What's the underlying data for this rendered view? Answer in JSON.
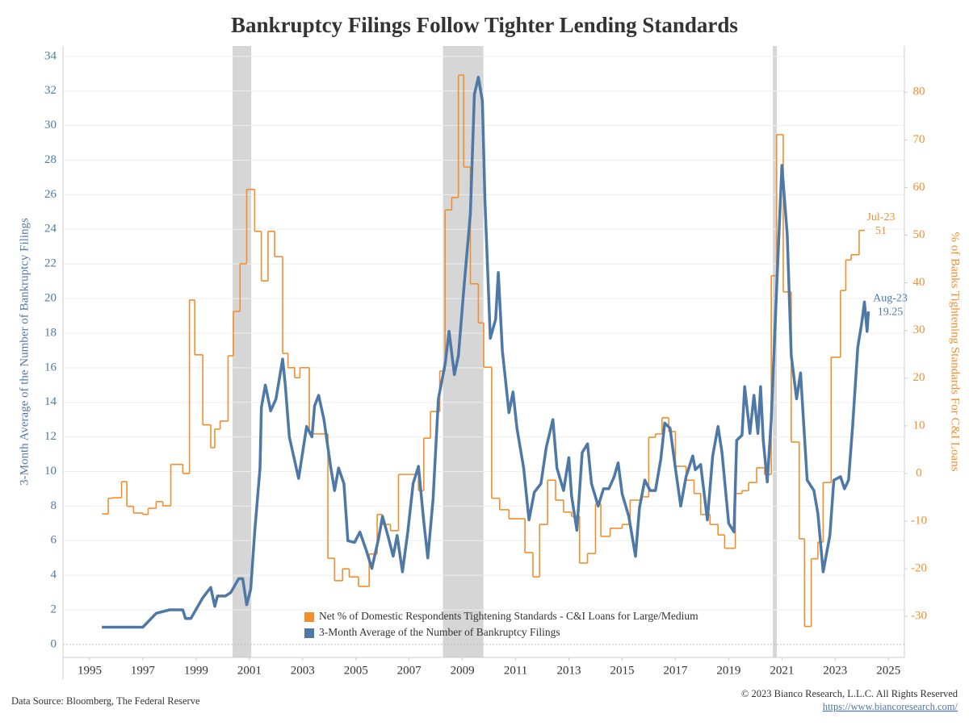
{
  "chart_data": {
    "type": "dual-axis-line",
    "title": "Bankruptcy Filings Follow Tighter Lending Standards",
    "y_label": "3-Month Average of the Number of Bankruptcy Filings",
    "y2_label": "% of Banks Tightening Standards For C&I Loans",
    "xlim": [
      1994,
      2025.6
    ],
    "xticks": [
      1995,
      1997,
      1999,
      2001,
      2003,
      2005,
      2007,
      2009,
      2011,
      2013,
      2015,
      2017,
      2019,
      2021,
      2023,
      2025
    ],
    "ylim": [
      -0.75,
      34.6
    ],
    "yticks": [
      0,
      2,
      4,
      6,
      8,
      10,
      12,
      14,
      16,
      18,
      20,
      22,
      24,
      26,
      28,
      30,
      32,
      34
    ],
    "y2lim": [
      -38.6,
      89.7
    ],
    "y2ticks": [
      -30,
      -20,
      -10,
      0,
      10,
      20,
      30,
      40,
      50,
      60,
      70,
      80
    ],
    "grid": true,
    "recessions": [
      [
        2000.37,
        2001.07
      ],
      [
        2008.27,
        2009.79
      ],
      [
        2020.66,
        2020.81
      ]
    ],
    "series": [
      {
        "name": "Net % of Domestic Respondents Tightening Standards - C&I Loans for Large/Medium",
        "color": "#f28e2b",
        "axis": "y2",
        "step": true,
        "x": [
          1995.46,
          1995.7,
          1995.85,
          1996.2,
          1996.4,
          1996.65,
          1997.0,
          1997.2,
          1997.5,
          1997.75,
          1998.05,
          1998.5,
          1998.75,
          1998.95,
          1999.25,
          1999.55,
          1999.7,
          1999.9,
          2000.2,
          2000.4,
          2000.65,
          2000.9,
          2001.2,
          2001.45,
          2001.7,
          2001.95,
          2002.25,
          2002.45,
          2002.7,
          2002.9,
          2003.25,
          2003.6,
          2003.95,
          2004.2,
          2004.5,
          2004.75,
          2005.1,
          2005.5,
          2005.8,
          2006.0,
          2006.3,
          2006.6,
          2007.35,
          2007.55,
          2007.8,
          2008.15,
          2008.35,
          2008.6,
          2008.85,
          2009.05,
          2009.3,
          2009.6,
          2009.8,
          2010.1,
          2010.4,
          2010.75,
          2011.35,
          2011.65,
          2011.9,
          2012.2,
          2012.5,
          2012.8,
          2013.1,
          2013.4,
          2013.7,
          2014.0,
          2014.2,
          2014.55,
          2015.0,
          2015.3,
          2015.75,
          2016.0,
          2016.25,
          2016.5,
          2016.75,
          2017.0,
          2017.4,
          2017.7,
          2017.95,
          2018.3,
          2018.6,
          2018.85,
          2019.25,
          2019.5,
          2019.75,
          2020.05,
          2020.35,
          2020.6,
          2020.8,
          2021.05,
          2021.35,
          2021.65,
          2021.85,
          2022.1,
          2022.35,
          2022.55,
          2022.85,
          2023.2,
          2023.4,
          2023.6,
          2023.9
        ],
        "values": [
          -8.5,
          -5.2,
          -5.1,
          -1.7,
          -6.9,
          -8.3,
          -8.6,
          -7.3,
          -5.9,
          -6.8,
          1.9,
          0,
          36.4,
          24.9,
          10.2,
          5.4,
          9.3,
          11,
          24.7,
          34,
          44,
          59.6,
          50.8,
          40.4,
          50.8,
          45.5,
          25.2,
          22.2,
          20.1,
          22.2,
          8.3,
          8.3,
          -17.8,
          -22.5,
          -20,
          -21.7,
          -23.7,
          -16.9,
          -8.6,
          -10.7,
          -12,
          -0.2,
          -3.6,
          7.4,
          13,
          21.5,
          55.3,
          57.9,
          83.6,
          64.3,
          39.8,
          31.6,
          22.3,
          -5.2,
          -7.6,
          -9.5,
          -16.6,
          -21.7,
          -10.7,
          -1.4,
          -5.6,
          -8.1,
          -9,
          -18.8,
          -16.8,
          -6.4,
          -13.2,
          -11.5,
          -10.7,
          -5.6,
          -4.9,
          7.6,
          8.3,
          11.7,
          8.8,
          1.5,
          -1.4,
          -4.2,
          -8.6,
          -10.7,
          -12.9,
          -15.7,
          -4.2,
          -3.6,
          -1.9,
          1.2,
          -0.2,
          41.5,
          71.1,
          38.1,
          6.6,
          -13.7,
          -32.1,
          -17.9,
          -14.4,
          -1.9,
          24.4,
          38.4,
          44.8,
          45.9,
          51
        ]
      },
      {
        "name": "3-Month Average of the Number of Bankruptcy Filings",
        "color": "#4e79a7",
        "axis": "y",
        "x": [
          1995.46,
          1997.0,
          1997.5,
          1998.0,
          1998.5,
          1998.6,
          1998.8,
          1999.25,
          1999.55,
          1999.7,
          1999.8,
          2000.1,
          2000.3,
          2000.6,
          2000.75,
          2000.9,
          2001.05,
          2001.2,
          2001.4,
          2001.45,
          2001.6,
          2001.8,
          2002.0,
          2002.25,
          2002.35,
          2002.5,
          2002.85,
          2003.15,
          2003.35,
          2003.45,
          2003.6,
          2003.8,
          2004.05,
          2004.2,
          2004.35,
          2004.55,
          2004.7,
          2004.95,
          2005.15,
          2005.4,
          2005.6,
          2005.85,
          2006.0,
          2006.2,
          2006.4,
          2006.55,
          2006.75,
          2006.95,
          2007.15,
          2007.35,
          2007.55,
          2007.7,
          2007.9,
          2008.1,
          2008.35,
          2008.5,
          2008.7,
          2008.85,
          2009.05,
          2009.3,
          2009.45,
          2009.6,
          2009.75,
          2009.85,
          2010.05,
          2010.25,
          2010.35,
          2010.5,
          2010.75,
          2010.9,
          2011.05,
          2011.3,
          2011.5,
          2011.7,
          2011.95,
          2012.15,
          2012.4,
          2012.55,
          2012.8,
          2013.0,
          2013.1,
          2013.3,
          2013.5,
          2013.7,
          2013.85,
          2014.1,
          2014.3,
          2014.5,
          2014.7,
          2014.85,
          2015.0,
          2015.25,
          2015.5,
          2015.65,
          2015.85,
          2016.05,
          2016.25,
          2016.45,
          2016.6,
          2016.8,
          2017.0,
          2017.2,
          2017.4,
          2017.65,
          2017.75,
          2017.95,
          2018.2,
          2018.4,
          2018.6,
          2018.75,
          2019.0,
          2019.2,
          2019.3,
          2019.5,
          2019.6,
          2019.8,
          2019.95,
          2020.1,
          2020.2,
          2020.3,
          2020.45,
          2020.6,
          2020.8,
          2021.0,
          2021.2,
          2021.35,
          2021.55,
          2021.7,
          2021.95,
          2022.2,
          2022.35,
          2022.55,
          2022.8,
          2022.95,
          2023.2,
          2023.35,
          2023.5,
          2023.65,
          2023.85,
          2024.0,
          2024.1,
          2024.2,
          2024.25
        ],
        "values": [
          1,
          1,
          1.8,
          2,
          2,
          1.5,
          1.5,
          2.7,
          3.3,
          2.2,
          2.8,
          2.8,
          3,
          3.8,
          3.8,
          2.3,
          3.2,
          6.5,
          10.2,
          13.7,
          15,
          13.5,
          14.2,
          16.5,
          15,
          12,
          9.6,
          12.6,
          12,
          13.8,
          14.4,
          13,
          10.3,
          8.9,
          10.2,
          9.3,
          6,
          5.9,
          6.5,
          5.4,
          4.4,
          6.1,
          7.4,
          6.3,
          5.1,
          6.3,
          4.2,
          6.5,
          9.3,
          10.3,
          7.1,
          5,
          8.4,
          14.2,
          16.2,
          18.1,
          15.6,
          16.7,
          20.5,
          24.9,
          31.8,
          32.8,
          31.4,
          25.6,
          17.7,
          18.8,
          21.5,
          17,
          13.4,
          14.6,
          12.5,
          10.2,
          7.2,
          8.8,
          9.3,
          11.4,
          13,
          10.2,
          8.9,
          10.8,
          8.6,
          6.6,
          11.1,
          11.6,
          9.3,
          8,
          9,
          9,
          9.7,
          10.5,
          8.7,
          7.4,
          5.1,
          7.9,
          9.5,
          8.9,
          8.9,
          10.7,
          12.8,
          12.5,
          10.2,
          8,
          9.7,
          10.9,
          10.1,
          10.4,
          7.2,
          10.9,
          12.6,
          11.1,
          7,
          6.5,
          11.8,
          12.1,
          14.9,
          12.2,
          14.4,
          12.2,
          14.9,
          11.8,
          9.4,
          13,
          20.5,
          27.7,
          23.7,
          16.7,
          14.2,
          15.7,
          9.5,
          8.9,
          7.6,
          4.2,
          6.3,
          9.5,
          9.7,
          9,
          9.5,
          12.5,
          17.2,
          18.6,
          19.8,
          18.1,
          19.25
        ]
      }
    ],
    "annotations": [
      {
        "label": "Jul-23",
        "value": 51,
        "series": 0
      },
      {
        "label": "Aug-23",
        "value": 19.25,
        "series": 1
      }
    ],
    "legend": "bottom-center",
    "source": "Data Source: Bloomberg, The Federal Reserve",
    "copyright": "© 2023 Bianco Research, L.L.C. All Rights Reserved",
    "url": "https://www.biancoresearch.com/"
  }
}
